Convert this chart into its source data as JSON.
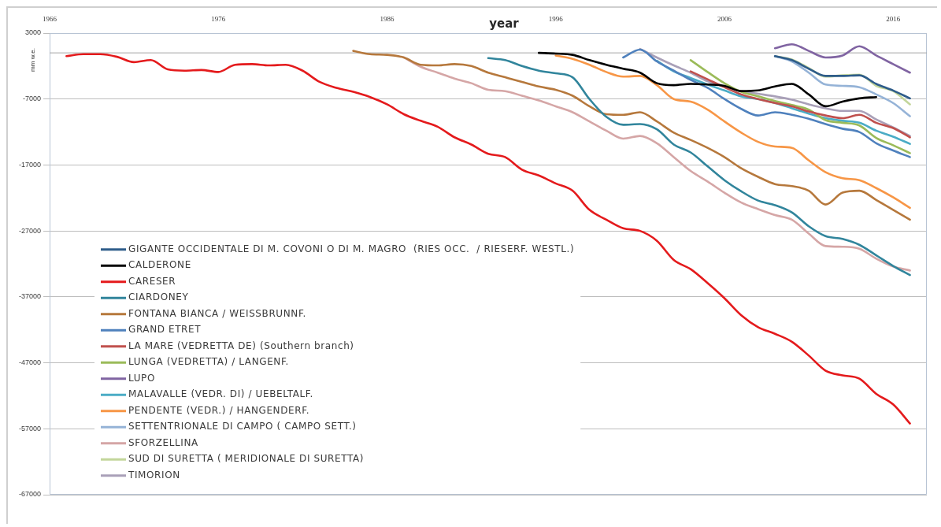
{
  "chart_data": {
    "type": "line",
    "xlabel": "year",
    "ylabel": "mm w.e.",
    "xlim": [
      1966,
      2018
    ],
    "xticks": [
      1966,
      1976,
      1986,
      1996,
      2006,
      2016
    ],
    "ylim": [
      -67000,
      3000
    ],
    "yticks": [
      3000,
      -7000,
      -17000,
      -27000,
      -37000,
      -47000,
      -57000,
      -67000
    ],
    "grid": "y",
    "legend": "bottom left",
    "ref_lines": [
      {
        "axis": "y",
        "value": 0,
        "color": "#a6a6a6"
      }
    ],
    "series": [
      {
        "name": "GIGANTE OCCIDENTALE DI M. COVONI O DI M. MAGRO  (RIES OCC.  / RIESERF. WESTL.)",
        "color": "#2e5c8a",
        "x": [
          2009,
          2010,
          2011,
          2012,
          2013,
          2014,
          2015,
          2016,
          2017
        ],
        "values": [
          -500,
          -1100,
          -2400,
          -3500,
          -3500,
          -3400,
          -4700,
          -5700,
          -6900
        ]
      },
      {
        "name": "CALDERONE",
        "color": "#000000",
        "x": [
          1995,
          1996,
          1997,
          1998,
          1999,
          2000,
          2001,
          2002,
          2003,
          2004,
          2005,
          2006,
          2007,
          2008,
          2009,
          2010,
          2011,
          2012,
          2013,
          2014,
          2015
        ],
        "values": [
          0,
          -100,
          -300,
          -1100,
          -1800,
          -2400,
          -3000,
          -4600,
          -4900,
          -4700,
          -4800,
          -5000,
          -5800,
          -5700,
          -5100,
          -4700,
          -6300,
          -8100,
          -7400,
          -6900,
          -6700
        ]
      },
      {
        "name": "CARESER",
        "color": "#e41a1c",
        "x": [
          1967,
          1968,
          1969,
          1970,
          1971,
          1972,
          1973,
          1974,
          1975,
          1976,
          1977,
          1978,
          1979,
          1980,
          1981,
          1982,
          1983,
          1984,
          1985,
          1986,
          1987,
          1988,
          1989,
          1990,
          1991,
          1992,
          1993,
          1994,
          1995,
          1996,
          1997,
          1998,
          1999,
          2000,
          2001,
          2002,
          2003,
          2004,
          2005,
          2006,
          2007,
          2008,
          2009,
          2010,
          2011,
          2012,
          2013,
          2014,
          2015,
          2016,
          2017
        ],
        "values": [
          -500,
          -200,
          -200,
          -600,
          -1400,
          -1100,
          -2500,
          -2700,
          -2600,
          -2900,
          -1800,
          -1700,
          -1900,
          -1800,
          -2700,
          -4400,
          -5300,
          -5900,
          -6700,
          -7800,
          -9300,
          -10300,
          -11200,
          -12800,
          -13900,
          -15300,
          -15800,
          -17700,
          -18600,
          -19800,
          -20900,
          -23800,
          -25300,
          -26600,
          -27000,
          -28500,
          -31400,
          -32800,
          -34900,
          -37200,
          -39800,
          -41600,
          -42600,
          -43800,
          -45900,
          -48200,
          -48900,
          -49400,
          -51700,
          -53300,
          -56200
        ]
      },
      {
        "name": "CIARDONEY",
        "color": "#31859c",
        "x": [
          1992,
          1993,
          1994,
          1995,
          1996,
          1997,
          1998,
          1999,
          2000,
          2001,
          2002,
          2003,
          2004,
          2005,
          2006,
          2007,
          2008,
          2009,
          2010,
          2011,
          2012,
          2013,
          2014,
          2015,
          2016,
          2017
        ],
        "values": [
          -800,
          -1100,
          -2000,
          -2700,
          -3100,
          -3700,
          -7000,
          -9700,
          -10900,
          -10800,
          -11600,
          -13900,
          -15100,
          -17200,
          -19300,
          -21000,
          -22400,
          -23100,
          -24200,
          -26300,
          -27800,
          -28200,
          -29100,
          -30700,
          -32300,
          -33700
        ]
      },
      {
        "name": "FONTANA BIANCA / WEISSBRUNNF.",
        "color": "#b6783c",
        "x": [
          1984,
          1985,
          1986,
          1987,
          1988,
          1989,
          1990,
          1991,
          1992,
          1993,
          1994,
          1995,
          1996,
          1997,
          1998,
          1999,
          2000,
          2001,
          2002,
          2003,
          2004,
          2005,
          2006,
          2007,
          2008,
          2009,
          2010,
          2011,
          2012,
          2013,
          2014,
          2015,
          2016,
          2017
        ],
        "values": [
          300,
          -200,
          -300,
          -700,
          -1800,
          -1900,
          -1700,
          -2000,
          -3000,
          -3700,
          -4400,
          -5100,
          -5600,
          -6500,
          -8100,
          -9300,
          -9400,
          -9000,
          -10400,
          -12100,
          -13200,
          -14400,
          -15800,
          -17500,
          -18800,
          -19900,
          -20200,
          -20900,
          -23000,
          -21200,
          -20900,
          -22300,
          -23800,
          -25300
        ]
      },
      {
        "name": "GRAND ETRET",
        "color": "#4f81bd",
        "x": [
          2000,
          2001,
          2002,
          2003,
          2004,
          2005,
          2006,
          2007,
          2008,
          2009,
          2010,
          2011,
          2012,
          2013,
          2014,
          2015,
          2016,
          2017
        ],
        "values": [
          -700,
          500,
          -1300,
          -2700,
          -4100,
          -5300,
          -7000,
          -8500,
          -9500,
          -9000,
          -9400,
          -10000,
          -10800,
          -11500,
          -12000,
          -13700,
          -14800,
          -15800
        ]
      },
      {
        "name": "LA MARE (VEDRETTA DE) (Southern branch)",
        "color": "#c0504d",
        "x": [
          2004,
          2005,
          2006,
          2007,
          2008,
          2009,
          2010,
          2011,
          2012,
          2013,
          2014,
          2015,
          2016,
          2017
        ],
        "values": [
          -2800,
          -4000,
          -5200,
          -6300,
          -7000,
          -7600,
          -8100,
          -8900,
          -9500,
          -9900,
          -9400,
          -10600,
          -11400,
          -12800
        ]
      },
      {
        "name": "LUNGA (VEDRETTA) / LANGENF.",
        "color": "#9bbb59",
        "x": [
          2004,
          2005,
          2006,
          2007,
          2008,
          2009,
          2010,
          2011,
          2012,
          2013,
          2014,
          2015,
          2016,
          2017
        ],
        "values": [
          -1100,
          -2900,
          -4600,
          -5900,
          -6600,
          -7300,
          -7900,
          -8600,
          -10200,
          -10600,
          -11000,
          -12900,
          -14000,
          -15200
        ]
      },
      {
        "name": "LUPO",
        "color": "#8064a2",
        "x": [
          2009,
          2010,
          2011,
          2012,
          2013,
          2014,
          2015,
          2016,
          2017
        ],
        "values": [
          700,
          1300,
          300,
          -700,
          -400,
          1000,
          -400,
          -1700,
          -3000
        ]
      },
      {
        "name": "MALAVALLE (VEDR. DI) / UEBELTALF.",
        "color": "#4bacc6",
        "x": [
          2002,
          2003,
          2004,
          2005,
          2006,
          2007,
          2008,
          2009,
          2010,
          2011,
          2012,
          2013,
          2014,
          2015,
          2016,
          2017
        ],
        "values": [
          -1200,
          -2800,
          -3800,
          -4800,
          -5700,
          -6600,
          -7000,
          -7600,
          -8400,
          -9200,
          -9900,
          -10300,
          -10600,
          -11800,
          -12700,
          -13800
        ]
      },
      {
        "name": "PENDENTE (VEDR.) / HANGENDERF.",
        "color": "#f79646",
        "x": [
          1996,
          1997,
          1998,
          1999,
          2000,
          2001,
          2002,
          2003,
          2004,
          2005,
          2006,
          2007,
          2008,
          2009,
          2010,
          2011,
          2012,
          2013,
          2014,
          2015,
          2016,
          2017
        ],
        "values": [
          -400,
          -900,
          -1800,
          -2900,
          -3600,
          -3500,
          -4900,
          -7000,
          -7400,
          -8600,
          -10400,
          -12100,
          -13500,
          -14200,
          -14400,
          -16300,
          -18100,
          -19000,
          -19300,
          -20500,
          -21900,
          -23500
        ]
      },
      {
        "name": "SETTENTRIONALE DI CAMPO ( CAMPO SETT.)",
        "color": "#95b3d7",
        "x": [
          2009,
          2010,
          2011,
          2012,
          2013,
          2014,
          2015,
          2016,
          2017
        ],
        "values": [
          -500,
          -1300,
          -3000,
          -4800,
          -5000,
          -5200,
          -6300,
          -7600,
          -9600
        ]
      },
      {
        "name": "SFORZELLINA",
        "color": "#d5a6a6",
        "x": [
          1987,
          1988,
          1989,
          1990,
          1991,
          1992,
          1993,
          1994,
          1995,
          1996,
          1997,
          1998,
          1999,
          2000,
          2001,
          2002,
          2003,
          2004,
          2005,
          2006,
          2007,
          2008,
          2009,
          2010,
          2011,
          2012,
          2013,
          2014,
          2015,
          2016,
          2017
        ],
        "values": [
          -700,
          -2100,
          -3000,
          -3900,
          -4600,
          -5600,
          -5800,
          -6500,
          -7200,
          -8100,
          -9000,
          -10400,
          -11800,
          -13000,
          -12600,
          -13700,
          -15800,
          -17900,
          -19500,
          -21200,
          -22700,
          -23700,
          -24600,
          -25300,
          -27400,
          -29300,
          -29400,
          -29700,
          -31200,
          -32400,
          -33000
        ]
      },
      {
        "name": "SUD DI SURETTA ( MERIDIONALE DI SURETTA)",
        "color": "#c3d69b",
        "x": [
          2009,
          2010,
          2011,
          2012,
          2013,
          2014,
          2015,
          2016,
          2017
        ],
        "values": [
          -500,
          -1000,
          -2300,
          -3600,
          -3400,
          -3300,
          -5000,
          -5800,
          -7800
        ]
      },
      {
        "name": "TIMORION",
        "color": "#a9a0b8",
        "x": [
          2001,
          2002,
          2003,
          2004,
          2005,
          2006,
          2007,
          2008,
          2009,
          2010,
          2011,
          2012,
          2013,
          2014,
          2015,
          2016,
          2017
        ],
        "values": [
          600,
          -700,
          -1900,
          -3000,
          -4300,
          -5100,
          -5800,
          -6200,
          -6600,
          -7100,
          -7800,
          -8400,
          -8800,
          -8800,
          -10100,
          -11300,
          -12600
        ]
      }
    ]
  }
}
